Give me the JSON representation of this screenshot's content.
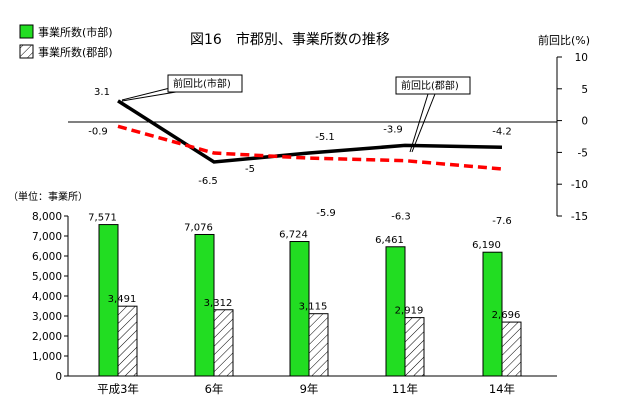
{
  "chart_data": {
    "type": "bar+line",
    "title": "図16　市郡別、事業所数の推移",
    "categories": [
      "平成3年",
      "6年",
      "9年",
      "11年",
      "14年"
    ],
    "bar_axis": {
      "unit_label": "（単位：事業所）",
      "ylim": [
        0,
        8000
      ],
      "ticks": [
        "0",
        "1,000",
        "2,000",
        "3,000",
        "4,000",
        "5,000",
        "6,000",
        "7,000",
        "8,000"
      ]
    },
    "line_axis": {
      "label": "前回比(%)",
      "ylim": [
        -15,
        10
      ],
      "ticks": [
        "10",
        "5",
        "0",
        "-5",
        "-10",
        "-15"
      ]
    },
    "bar_series": [
      {
        "name": "事業所数(市部)",
        "color": "#22dd22",
        "pattern": "solid",
        "values": [
          7571,
          7076,
          6724,
          6461,
          6190
        ],
        "labels": [
          "7,571",
          "7,076",
          "6,724",
          "6,461",
          "6,190"
        ]
      },
      {
        "name": "事業所数(郡部)",
        "color": "#ffffff",
        "pattern": "hatch",
        "values": [
          3491,
          3312,
          3115,
          2919,
          2696
        ],
        "labels": [
          "3,491",
          "3,312",
          "3,115",
          "2,919",
          "2,696"
        ]
      }
    ],
    "line_series": [
      {
        "name": "前回比(市部)",
        "color": "#000000",
        "style": "solid",
        "values": [
          3.1,
          -6.5,
          -5.1,
          -3.9,
          -4.2
        ],
        "labels": [
          "3.1",
          "-6.5",
          "-5.1",
          "-3.9",
          "-4.2"
        ]
      },
      {
        "name": "前回比(郡部)",
        "color": "#ff0000",
        "style": "dashed",
        "values": [
          -0.9,
          -5.1,
          -5.9,
          -6.3,
          -7.6
        ],
        "labels": [
          "-0.9",
          "-5",
          "-5.9",
          "-6.3",
          "-7.6"
        ]
      }
    ],
    "legend": {
      "position": "top-left",
      "items": [
        "事業所数(市部)",
        "事業所数(郡部)"
      ]
    },
    "callouts": [
      "前回比(市部)",
      "前回比(郡部)"
    ],
    "grid": false
  }
}
